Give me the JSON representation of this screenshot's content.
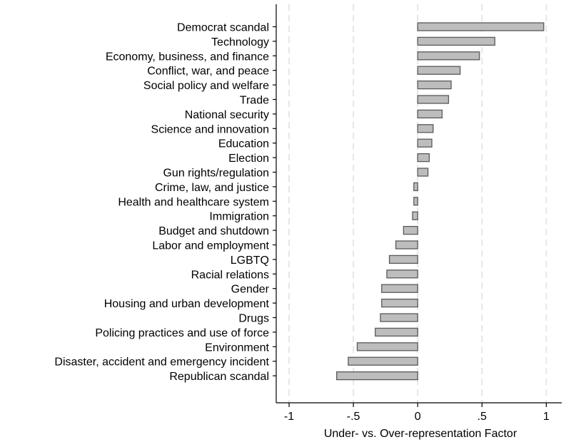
{
  "chart_data": {
    "type": "bar",
    "orientation": "horizontal",
    "title": "",
    "xlabel": "Under- vs. Over-representation Factor",
    "ylabel": "",
    "xlim": [
      -1.1,
      1.12
    ],
    "xticks": [
      -1,
      -0.5,
      0,
      0.5,
      1
    ],
    "xtick_labels": [
      "-1",
      "-.5",
      "0",
      ".5",
      "1"
    ],
    "grid": "vertical dashed at x ticks",
    "bar_color": "#bdbdbd",
    "bar_edge_color": "#5a5a5a",
    "categories": [
      "Democrat scandal",
      "Technology",
      "Economy, business, and finance",
      "Conflict, war, and peace",
      "Social policy and welfare",
      "Trade",
      "National security",
      "Science and innovation",
      "Education",
      "Election",
      "Gun rights/regulation",
      "Crime, law, and justice",
      "Health and healthcare system",
      "Immigration",
      "Budget and shutdown",
      "Labor and employment",
      "LGBTQ",
      "Racial relations",
      "Gender",
      "Housing and urban development",
      "Drugs",
      "Policing practices and use of force",
      "Environment",
      "Disaster, accident and emergency incident",
      "Republican scandal"
    ],
    "values": [
      0.98,
      0.6,
      0.48,
      0.33,
      0.26,
      0.24,
      0.19,
      0.12,
      0.11,
      0.09,
      0.08,
      -0.03,
      -0.03,
      -0.04,
      -0.11,
      -0.17,
      -0.22,
      -0.24,
      -0.28,
      -0.28,
      -0.29,
      -0.33,
      -0.47,
      -0.54,
      -0.63
    ]
  }
}
